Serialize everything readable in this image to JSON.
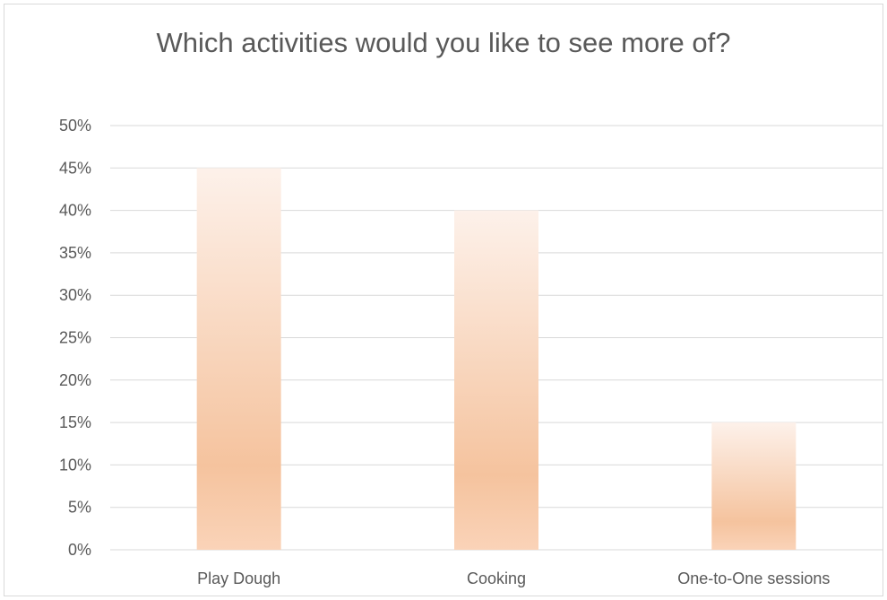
{
  "chart_data": {
    "type": "bar",
    "title": "Which activities would you like to see more of?",
    "categories": [
      "Play Dough",
      "Cooking",
      "One-to-One sessions"
    ],
    "values": [
      45,
      40,
      15
    ],
    "value_unit": "%",
    "ylim": [
      0,
      50
    ],
    "yticks": [
      "0%",
      "5%",
      "10%",
      "15%",
      "20%",
      "25%",
      "30%",
      "35%",
      "40%",
      "45%",
      "50%"
    ],
    "grid": true,
    "legend": "none",
    "colors": {
      "bar_top": "#fdf1ea",
      "bar_mid": "#f5c39e",
      "bar_bottom": "#fad3b8",
      "grid": "#d9d9d9",
      "text": "#595959"
    }
  }
}
